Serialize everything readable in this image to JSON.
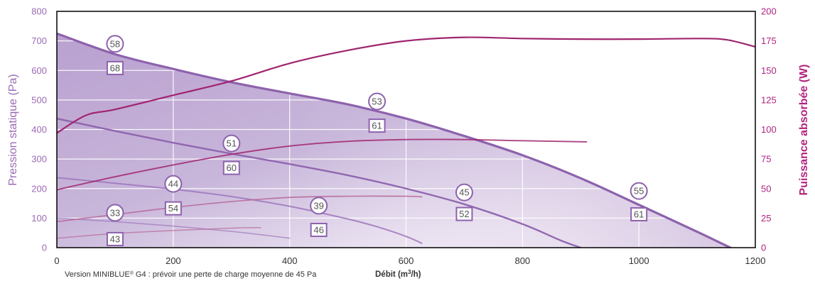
{
  "colors": {
    "pressure_axis": "#9b6bb5",
    "power_axis": "#b0247f",
    "curve": "#8d62ad",
    "curve_light": "#9e76bc",
    "power_line": "#a0246f",
    "power_line_soft": "#b86d9b",
    "badge_border": "#8d62ad",
    "grid": "#ffffff"
  },
  "footnote": {
    "prefix": "Version MINIBLUE",
    "registered": "®",
    "suffix": " G4 : prévoir une perte de charge moyenne de 45 Pa"
  },
  "xlabel": {
    "prefix": "Débit (m",
    "superscript": "3",
    "suffix": "/h)"
  },
  "chart_data": {
    "type": "line",
    "title": "",
    "xlabel": "Débit (m³/h)",
    "ylabel_left": "Pression statique (Pa)",
    "ylabel_right": "Puissance absorbée (W)",
    "xlim": [
      0,
      1200
    ],
    "ylim_left": [
      0,
      800
    ],
    "ylim_right": [
      0,
      200
    ],
    "x_ticks": [
      "0",
      "200",
      "400",
      "600",
      "800",
      "1000",
      "1200"
    ],
    "y_ticks_left": [
      "0",
      "100",
      "200",
      "300",
      "400",
      "500",
      "600",
      "700",
      "800"
    ],
    "y_ticks_right": [
      "0",
      "25",
      "50",
      "75",
      "100",
      "125",
      "150",
      "175",
      "200"
    ],
    "grid": true,
    "pressure_series": [
      {
        "points": [
          [
            0,
            725
          ],
          [
            100,
            655
          ],
          [
            200,
            605
          ],
          [
            300,
            560
          ],
          [
            400,
            522
          ],
          [
            500,
            485
          ],
          [
            600,
            437
          ],
          [
            700,
            378
          ],
          [
            800,
            313
          ],
          [
            900,
            235
          ],
          [
            1000,
            145
          ],
          [
            1100,
            54
          ],
          [
            1157,
            0
          ]
        ]
      },
      {
        "points": [
          [
            0,
            437
          ],
          [
            100,
            395
          ],
          [
            200,
            355
          ],
          [
            300,
            318
          ],
          [
            400,
            283
          ],
          [
            500,
            245
          ],
          [
            600,
            200
          ],
          [
            700,
            147
          ],
          [
            800,
            80
          ],
          [
            865,
            25
          ],
          [
            900,
            0
          ]
        ]
      },
      {
        "points": [
          [
            0,
            237
          ],
          [
            100,
            218
          ],
          [
            200,
            198
          ],
          [
            300,
            173
          ],
          [
            400,
            140
          ],
          [
            500,
            97
          ],
          [
            550,
            71
          ],
          [
            600,
            38
          ],
          [
            627,
            15
          ]
        ]
      },
      {
        "points": [
          [
            0,
            100
          ],
          [
            100,
            88
          ],
          [
            200,
            73
          ],
          [
            300,
            55
          ],
          [
            350,
            44
          ],
          [
            400,
            32
          ]
        ]
      }
    ],
    "power_series": [
      {
        "axis": "right",
        "points": [
          [
            0,
            97
          ],
          [
            50,
            112
          ],
          [
            100,
            117
          ],
          [
            200,
            129
          ],
          [
            300,
            141
          ],
          [
            400,
            156
          ],
          [
            500,
            167
          ],
          [
            600,
            175
          ],
          [
            700,
            178
          ],
          [
            800,
            177
          ],
          [
            900,
            176.5
          ],
          [
            1000,
            176.5
          ],
          [
            1100,
            177
          ],
          [
            1150,
            176
          ],
          [
            1200,
            170
          ]
        ]
      },
      {
        "axis": "right",
        "points": [
          [
            0,
            49
          ],
          [
            100,
            60
          ],
          [
            200,
            70
          ],
          [
            300,
            79
          ],
          [
            400,
            86
          ],
          [
            500,
            90
          ],
          [
            600,
            91.5
          ],
          [
            700,
            91.5
          ],
          [
            800,
            90.5
          ],
          [
            910,
            89.5
          ]
        ]
      },
      {
        "axis": "right",
        "points": [
          [
            0,
            22
          ],
          [
            100,
            28
          ],
          [
            200,
            34
          ],
          [
            300,
            39
          ],
          [
            400,
            42.5
          ],
          [
            500,
            43.5
          ],
          [
            600,
            43.5
          ],
          [
            627,
            43
          ]
        ]
      },
      {
        "axis": "right",
        "points": [
          [
            0,
            8
          ],
          [
            100,
            12
          ],
          [
            200,
            14.5
          ],
          [
            300,
            16.5
          ],
          [
            350,
            17
          ]
        ]
      }
    ],
    "annotations": [
      {
        "shape": "circle",
        "label": "58",
        "x": 100,
        "y": 690
      },
      {
        "shape": "square",
        "label": "68",
        "x": 100,
        "y": 608
      },
      {
        "shape": "circle",
        "label": "53",
        "x": 550,
        "y": 495
      },
      {
        "shape": "square",
        "label": "61",
        "x": 550,
        "y": 413
      },
      {
        "shape": "circle",
        "label": "51",
        "x": 300,
        "y": 353
      },
      {
        "shape": "square",
        "label": "60",
        "x": 300,
        "y": 270
      },
      {
        "shape": "circle",
        "label": "44",
        "x": 200,
        "y": 216
      },
      {
        "shape": "square",
        "label": "54",
        "x": 200,
        "y": 133
      },
      {
        "shape": "circle",
        "label": "33",
        "x": 100,
        "y": 118
      },
      {
        "shape": "square",
        "label": "43",
        "x": 100,
        "y": 29
      },
      {
        "shape": "circle",
        "label": "39",
        "x": 450,
        "y": 142
      },
      {
        "shape": "square",
        "label": "46",
        "x": 450,
        "y": 60
      },
      {
        "shape": "circle",
        "label": "45",
        "x": 700,
        "y": 187
      },
      {
        "shape": "square",
        "label": "52",
        "x": 700,
        "y": 114
      },
      {
        "shape": "circle",
        "label": "55",
        "x": 1000,
        "y": 192
      },
      {
        "shape": "square",
        "label": "61",
        "x": 1000,
        "y": 113
      }
    ]
  }
}
